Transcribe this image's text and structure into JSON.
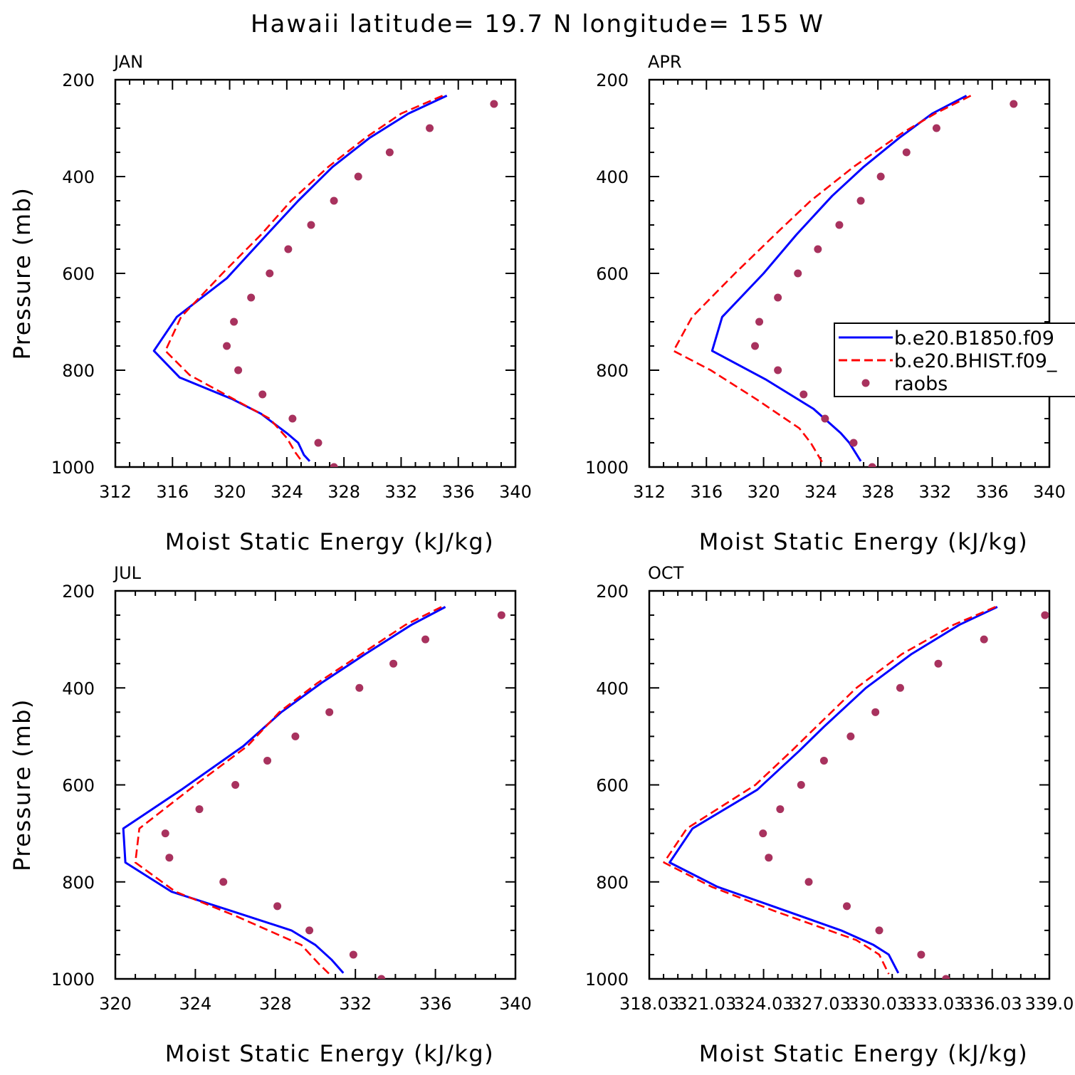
{
  "figure": {
    "title": "Hawaii  latitude= 19.7 N longitude= 155 W"
  },
  "legend": {
    "entries": [
      {
        "name": "b.e20.B1850.f09",
        "color": "#0000ff",
        "style": "solid"
      },
      {
        "name": "b.e20.BHIST.f09_",
        "color": "#ff0000",
        "style": "dashed"
      },
      {
        "name": "raobs",
        "color": "#a8325e",
        "style": "marker"
      }
    ]
  },
  "chart_data": [
    {
      "type": "line",
      "panel_label": "JAN",
      "xlabel": "Moist Static Energy (kJ/kg)",
      "ylabel": "Pressure (mb)",
      "xlim": [
        312,
        340
      ],
      "ylim": [
        200,
        1000
      ],
      "y_inverted": true,
      "x_ticks": [
        312,
        316,
        320,
        324,
        328,
        332,
        336,
        340
      ],
      "x_tick_labels": [
        "312",
        "316",
        "320",
        "324",
        "328",
        "332",
        "336",
        "340"
      ],
      "y_ticks": [
        200,
        400,
        600,
        800,
        1000
      ],
      "y_tick_labels": [
        "200",
        "400",
        "600",
        "800",
        "1000"
      ],
      "series": [
        {
          "name": "b.e20.B1850.f09",
          "color": "#0000ff",
          "style": "solid",
          "pressure": [
            233,
            270,
            320,
            380,
            450,
            520,
            610,
            690,
            760,
            815,
            860,
            890,
            930,
            950,
            975,
            988
          ],
          "values": [
            335.2,
            332.5,
            329.8,
            327.2,
            324.8,
            322.6,
            319.8,
            316.3,
            314.7,
            316.5,
            320.2,
            322.2,
            324.0,
            324.8,
            325.2,
            325.6
          ]
        },
        {
          "name": "b.e20.BHIST.f09_",
          "color": "#ff0000",
          "style": "dashed",
          "pressure": [
            233,
            270,
            320,
            380,
            450,
            520,
            600,
            690,
            760,
            810,
            860,
            900,
            940,
            970,
            990
          ],
          "values": [
            334.9,
            332.0,
            329.5,
            326.9,
            324.3,
            322.2,
            319.5,
            316.6,
            315.5,
            317.2,
            320.3,
            322.8,
            324.0,
            324.6,
            325.1
          ]
        },
        {
          "name": "raobs",
          "color": "#a8325e",
          "style": "marker",
          "pressure": [
            250,
            300,
            350,
            400,
            450,
            500,
            550,
            600,
            650,
            700,
            750,
            800,
            850,
            900,
            950,
            1000
          ],
          "values": [
            338.5,
            334.0,
            331.2,
            329.0,
            327.3,
            325.7,
            324.1,
            322.8,
            321.5,
            320.3,
            319.8,
            320.6,
            322.3,
            324.4,
            326.2,
            327.3
          ]
        }
      ]
    },
    {
      "type": "line",
      "panel_label": "APR",
      "xlabel": "Moist Static Energy (kJ/kg)",
      "ylabel": "",
      "xlim": [
        312,
        340
      ],
      "ylim": [
        200,
        1000
      ],
      "y_inverted": true,
      "x_ticks": [
        312,
        316,
        320,
        324,
        328,
        332,
        336,
        340
      ],
      "x_tick_labels": [
        "312",
        "316",
        "320",
        "324",
        "328",
        "332",
        "336",
        "340"
      ],
      "y_ticks": [
        200,
        400,
        600,
        800,
        1000
      ],
      "y_tick_labels": [
        "200",
        "400",
        "600",
        "800",
        "1000"
      ],
      "series": [
        {
          "name": "b.e20.B1850.f09",
          "color": "#0000ff",
          "style": "solid",
          "pressure": [
            233,
            270,
            320,
            380,
            440,
            520,
            600,
            690,
            760,
            820,
            880,
            930,
            950,
            988
          ],
          "values": [
            334.2,
            331.8,
            329.5,
            327.0,
            324.8,
            322.3,
            320.0,
            317.1,
            316.4,
            320.2,
            323.5,
            325.4,
            326.0,
            326.8
          ]
        },
        {
          "name": "b.e20.BHIST.f09_",
          "color": "#ff0000",
          "style": "dashed",
          "pressure": [
            233,
            270,
            310,
            380,
            450,
            520,
            600,
            690,
            760,
            800,
            860,
            920,
            950,
            990
          ],
          "values": [
            334.5,
            332.0,
            329.7,
            326.3,
            323.3,
            320.8,
            318.0,
            315.0,
            313.7,
            316.3,
            319.5,
            322.5,
            323.3,
            324.1
          ]
        },
        {
          "name": "raobs",
          "color": "#a8325e",
          "style": "marker",
          "pressure": [
            250,
            300,
            350,
            400,
            450,
            500,
            550,
            600,
            650,
            700,
            750,
            800,
            850,
            900,
            950,
            1000
          ],
          "values": [
            337.5,
            332.1,
            330.0,
            328.2,
            326.8,
            325.3,
            323.8,
            322.4,
            321.0,
            319.7,
            319.4,
            321.0,
            322.8,
            324.3,
            326.3,
            327.6
          ]
        }
      ]
    },
    {
      "type": "line",
      "panel_label": "JUL",
      "xlabel": "Moist Static Energy (kJ/kg)",
      "ylabel": "Pressure (mb)",
      "xlim": [
        320,
        340
      ],
      "ylim": [
        200,
        1000
      ],
      "y_inverted": true,
      "x_ticks": [
        320,
        324,
        328,
        332,
        336,
        340
      ],
      "x_tick_labels": [
        "320",
        "324",
        "328",
        "332",
        "336",
        "340"
      ],
      "y_ticks": [
        200,
        400,
        600,
        800,
        1000
      ],
      "y_tick_labels": [
        "200",
        "400",
        "600",
        "800",
        "1000"
      ],
      "series": [
        {
          "name": "b.e20.B1850.f09",
          "color": "#0000ff",
          "style": "solid",
          "pressure": [
            233,
            270,
            330,
            390,
            450,
            520,
            610,
            690,
            760,
            820,
            860,
            900,
            930,
            960,
            988
          ],
          "values": [
            336.5,
            334.8,
            332.5,
            330.3,
            328.3,
            326.4,
            323.3,
            320.4,
            320.5,
            322.8,
            325.8,
            328.8,
            330.0,
            330.8,
            331.4
          ]
        },
        {
          "name": "b.e20.BHIST.f09_",
          "color": "#ff0000",
          "style": "dashed",
          "pressure": [
            233,
            270,
            330,
            390,
            450,
            520,
            600,
            690,
            760,
            820,
            870,
            930,
            970,
            990
          ],
          "values": [
            336.3,
            334.5,
            332.3,
            330.1,
            328.2,
            326.6,
            324.0,
            321.2,
            321.0,
            323.0,
            326.0,
            329.3,
            330.2,
            330.7
          ]
        },
        {
          "name": "raobs",
          "color": "#a8325e",
          "style": "marker",
          "pressure": [
            250,
            300,
            350,
            400,
            450,
            500,
            550,
            600,
            650,
            700,
            750,
            800,
            850,
            900,
            950,
            1000
          ],
          "values": [
            339.3,
            335.5,
            333.9,
            332.2,
            330.7,
            329.0,
            327.6,
            326.0,
            324.2,
            322.5,
            322.7,
            325.4,
            328.1,
            329.7,
            331.9,
            333.3
          ]
        }
      ]
    },
    {
      "type": "line",
      "panel_label": "OCT",
      "xlabel": "Moist Static Energy (kJ/kg)",
      "ylabel": "",
      "xlim": [
        318.03,
        339.03
      ],
      "ylim": [
        200,
        1000
      ],
      "y_inverted": true,
      "x_ticks": [
        318.03,
        321.03,
        324.03,
        327.03,
        330.03,
        333.03,
        336.03,
        339.03
      ],
      "x_tick_labels": [
        "318.03",
        "321.03",
        "324.03",
        "327.03",
        "330.03",
        "333.03",
        "336.03",
        "339.0"
      ],
      "y_ticks": [
        200,
        400,
        600,
        800,
        1000
      ],
      "y_tick_labels": [
        "200",
        "400",
        "600",
        "800",
        "1000"
      ],
      "series": [
        {
          "name": "b.e20.B1850.f09",
          "color": "#0000ff",
          "style": "solid",
          "pressure": [
            233,
            270,
            330,
            400,
            480,
            530,
            610,
            690,
            760,
            810,
            850,
            900,
            930,
            950,
            988
          ],
          "values": [
            336.3,
            334.3,
            331.8,
            329.4,
            327.2,
            325.9,
            323.7,
            320.3,
            319.1,
            321.6,
            324.5,
            328.1,
            329.8,
            330.6,
            331.1
          ]
        },
        {
          "name": "b.e20.BHIST.f09_",
          "color": "#ff0000",
          "style": "dashed",
          "pressure": [
            233,
            270,
            330,
            400,
            480,
            530,
            600,
            690,
            760,
            810,
            860,
            920,
            950,
            990
          ],
          "values": [
            336.2,
            334.0,
            331.3,
            328.9,
            326.8,
            325.5,
            323.6,
            320.0,
            318.8,
            321.3,
            324.6,
            328.9,
            330.1,
            330.6
          ]
        },
        {
          "name": "raobs",
          "color": "#a8325e",
          "style": "marker",
          "pressure": [
            250,
            300,
            350,
            400,
            450,
            500,
            550,
            600,
            650,
            700,
            750,
            800,
            850,
            900,
            950,
            1000
          ],
          "values": [
            338.8,
            335.6,
            333.2,
            331.2,
            329.9,
            328.6,
            327.2,
            326.0,
            324.9,
            324.0,
            324.3,
            326.4,
            328.4,
            330.1,
            332.3,
            333.6
          ]
        }
      ]
    }
  ]
}
